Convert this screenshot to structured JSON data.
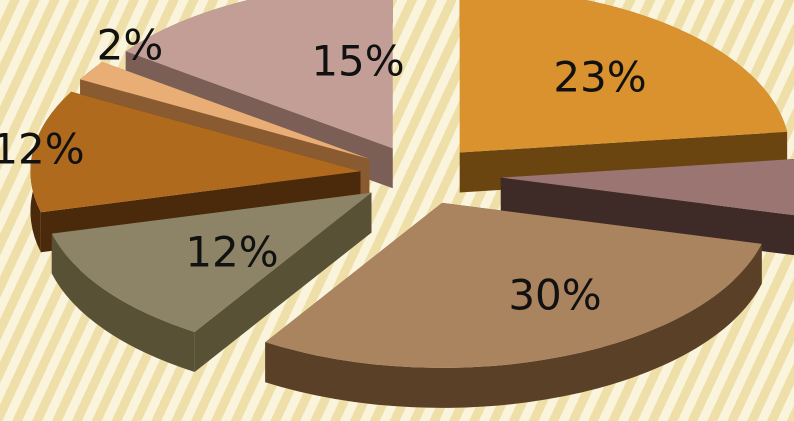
{
  "chart_data": {
    "type": "pie",
    "style": "3d-exploded",
    "slices": [
      {
        "label": "23%",
        "value": 23,
        "color": "#d9922e",
        "side": "#6b4510"
      },
      {
        "label": "",
        "value": 6,
        "color": "#9a7572",
        "side": "#3e2a26"
      },
      {
        "label": "30%",
        "value": 30,
        "color": "#a9845f",
        "side": "#5a4026"
      },
      {
        "label": "12%",
        "value": 12,
        "color": "#8d8467",
        "side": "#585136"
      },
      {
        "label": "12%",
        "value": 12,
        "color": "#b06a1e",
        "side": "#4a2a0a"
      },
      {
        "label": "2%",
        "value": 2,
        "color": "#e9ad76",
        "side": "#8a5a30"
      },
      {
        "label": "15%",
        "value": 15,
        "color": "#c39e96",
        "side": "#7b5e56"
      }
    ],
    "title": "",
    "legend": "none"
  }
}
